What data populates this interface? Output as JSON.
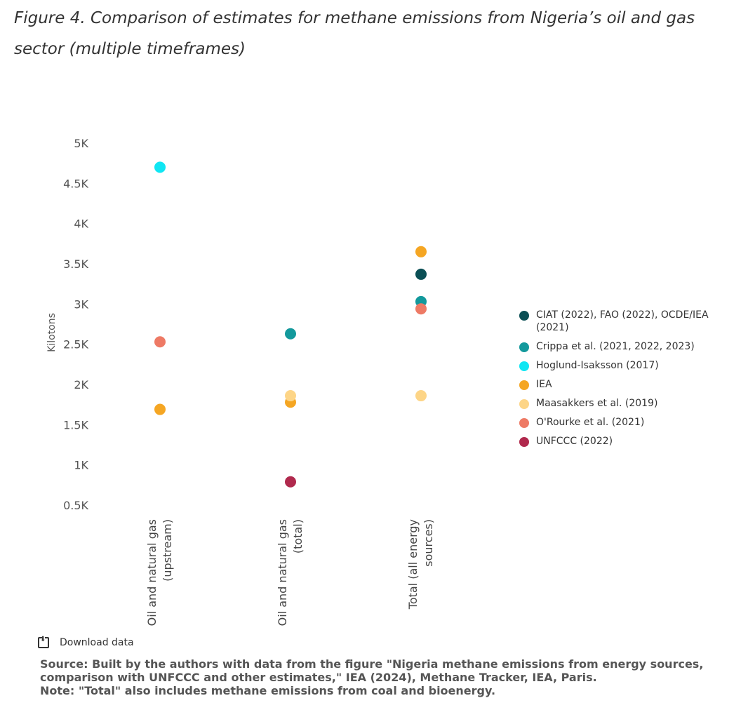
{
  "figure": {
    "title": "Figure 4. Comparison of estimates for methane emissions from Nigeria’s oil and gas sector (multiple timeframes)"
  },
  "chart_data": {
    "type": "scatter",
    "ylabel": "Kilotons",
    "xlabel": "",
    "ylim": [
      500,
      5000
    ],
    "y_ticks": [
      {
        "value": 5000,
        "label": "5K"
      },
      {
        "value": 4500,
        "label": "4.5K"
      },
      {
        "value": 4000,
        "label": "4K"
      },
      {
        "value": 3500,
        "label": "3.5K"
      },
      {
        "value": 3000,
        "label": "3K"
      },
      {
        "value": 2500,
        "label": "2.5K"
      },
      {
        "value": 2000,
        "label": "2K"
      },
      {
        "value": 1500,
        "label": "1.5K"
      },
      {
        "value": 1000,
        "label": "1K"
      },
      {
        "value": 500,
        "label": "0.5K"
      }
    ],
    "categories": [
      {
        "line1": "Oil and natural gas",
        "line2": "(upstream)"
      },
      {
        "line1": "Oil and natural gas",
        "line2": "(total)"
      },
      {
        "line1": "Total (all energy",
        "line2": "sources)"
      }
    ],
    "grid": false,
    "legend_position": "right",
    "series": [
      {
        "name": "CIAT (2022), FAO (2022), OCDE/IEA (2021)",
        "color": "#0b4f55",
        "values": [
          null,
          null,
          3370
        ]
      },
      {
        "name": "Crippa et al. (2021, 2022, 2023)",
        "color": "#13999c",
        "values": [
          null,
          2630,
          3030
        ]
      },
      {
        "name": "Hoglund-Isaksson (2017)",
        "color": "#10e6f3",
        "values": [
          4700,
          null,
          null
        ]
      },
      {
        "name": "IEA",
        "color": "#f5a623",
        "values": [
          1690,
          1780,
          3650
        ]
      },
      {
        "name": "Maasakkers et al. (2019)",
        "color": "#fdd587",
        "values": [
          null,
          1860,
          1860
        ]
      },
      {
        "name": "O'Rourke et al. (2021)",
        "color": "#ee7a65",
        "values": [
          2530,
          null,
          2940
        ]
      },
      {
        "name": "UNFCCC (2022)",
        "color": "#b0294d",
        "values": [
          null,
          790,
          null
        ]
      }
    ]
  },
  "download": {
    "label": "Download data",
    "icon": "download-icon"
  },
  "source": {
    "line1": "Source: Built by the authors with data from the figure \"Nigeria methane emissions from energy sources,",
    "line2": "comparison with UNFCCC and other estimates,\" IEA (2024), Methane Tracker, IEA, Paris.",
    "line3": "Note: \"Total\" also includes methane emissions from coal and bioenergy."
  }
}
